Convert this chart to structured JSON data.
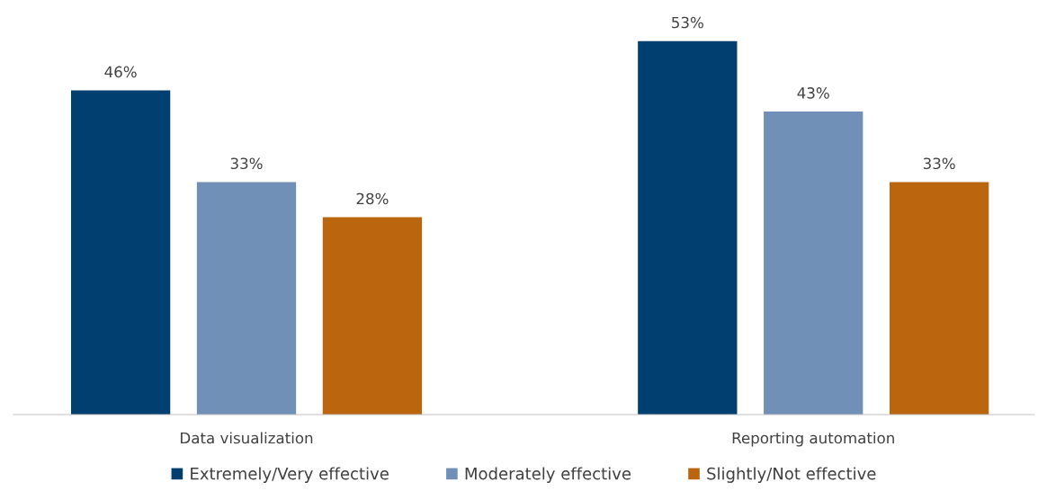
{
  "chart_data": {
    "type": "bar",
    "categories": [
      "Data visualization",
      "Reporting automation"
    ],
    "series": [
      {
        "name": "Extremely/Very effective",
        "color": "#003f6f",
        "values": [
          46,
          53
        ],
        "value_labels": [
          "46%",
          "53%"
        ]
      },
      {
        "name": "Moderately effective",
        "color": "#7190b8",
        "values": [
          33,
          43
        ],
        "value_labels": [
          "33%",
          "43%"
        ]
      },
      {
        "name": "Slightly/Not effective",
        "color": "#bb650f",
        "values": [
          28,
          33
        ],
        "value_labels": [
          "28%",
          "33%"
        ]
      }
    ],
    "legend": "bottom"
  }
}
